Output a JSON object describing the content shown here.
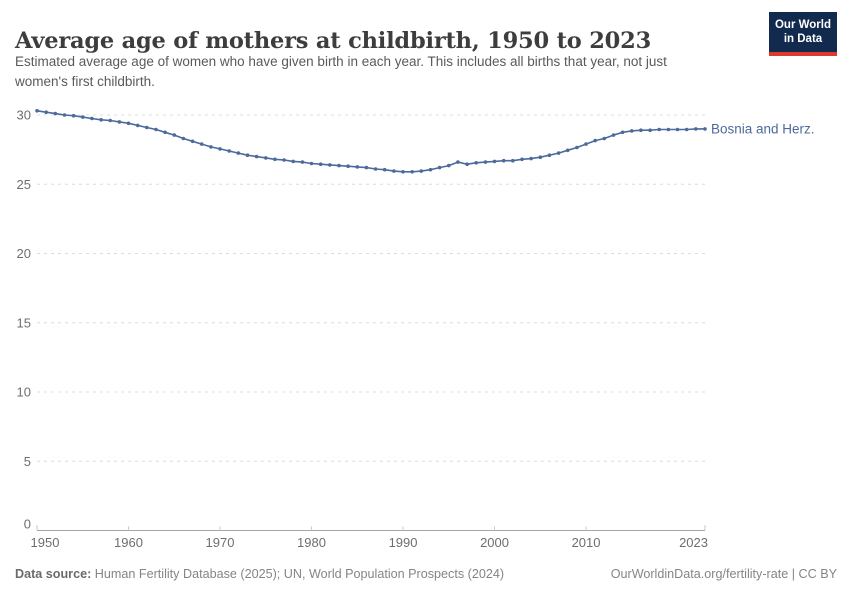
{
  "header": {
    "title": "Average age of mothers at childbirth, 1950 to 2023",
    "subtitle_lines": [
      "Estimated average age of women who have given birth in each year. This includes all births that year, not just",
      "women's first childbirth."
    ],
    "logo": {
      "line1": "Our World",
      "line2": "in Data",
      "bg_color": "#112a4e",
      "accent_color": "#dc3a2c",
      "text_color": "#ffffff"
    }
  },
  "chart_data": {
    "type": "line",
    "title": "Average age of mothers at childbirth, 1950 to 2023",
    "xlabel": "",
    "ylabel": "",
    "xlim": [
      1950,
      2023
    ],
    "ylim": [
      0,
      31
    ],
    "x_ticks": [
      1950,
      1960,
      1970,
      1980,
      1990,
      2000,
      2010,
      2023
    ],
    "y_ticks": [
      0,
      5,
      10,
      15,
      20,
      25,
      30
    ],
    "grid": "horizontal-dashed",
    "legend_position": "label-right-of-line",
    "colors": {
      "grid": "#dcdcdc",
      "axis": "#a6a6a6",
      "tick_label": "#6e6e6e"
    },
    "series": [
      {
        "name": "Bosnia and Herz.",
        "color": "#4c6a9c",
        "x": [
          1950,
          1951,
          1952,
          1953,
          1954,
          1955,
          1956,
          1957,
          1958,
          1959,
          1960,
          1961,
          1962,
          1963,
          1964,
          1965,
          1966,
          1967,
          1968,
          1969,
          1970,
          1971,
          1972,
          1973,
          1974,
          1975,
          1976,
          1977,
          1978,
          1979,
          1980,
          1981,
          1982,
          1983,
          1984,
          1985,
          1986,
          1987,
          1988,
          1989,
          1990,
          1991,
          1992,
          1993,
          1994,
          1995,
          1996,
          1997,
          1998,
          1999,
          2000,
          2001,
          2002,
          2003,
          2004,
          2005,
          2006,
          2007,
          2008,
          2009,
          2010,
          2011,
          2012,
          2013,
          2014,
          2015,
          2016,
          2017,
          2018,
          2019,
          2020,
          2021,
          2022,
          2023
        ],
        "values": [
          30.3,
          30.2,
          30.1,
          30.0,
          29.95,
          29.85,
          29.75,
          29.65,
          29.6,
          29.5,
          29.4,
          29.25,
          29.1,
          28.95,
          28.75,
          28.55,
          28.3,
          28.1,
          27.9,
          27.7,
          27.55,
          27.4,
          27.25,
          27.1,
          27.0,
          26.9,
          26.8,
          26.75,
          26.65,
          26.6,
          26.5,
          26.45,
          26.4,
          26.35,
          26.3,
          26.25,
          26.2,
          26.1,
          26.05,
          25.95,
          25.9,
          25.9,
          25.95,
          26.05,
          26.2,
          26.35,
          26.6,
          26.45,
          26.55,
          26.6,
          26.65,
          26.7,
          26.7,
          26.8,
          26.85,
          26.95,
          27.1,
          27.25,
          27.45,
          27.65,
          27.9,
          28.15,
          28.3,
          28.55,
          28.75,
          28.85,
          28.9,
          28.9,
          28.95,
          28.95,
          28.95,
          28.95,
          29.0,
          29.0
        ]
      }
    ]
  },
  "footer": {
    "datasource_label": "Data source:",
    "datasource_text": " Human Fertility Database (2025); UN, World Population Prospects (2024)",
    "credit_text": "OurWorldinData.org/fertility-rate | CC BY"
  }
}
